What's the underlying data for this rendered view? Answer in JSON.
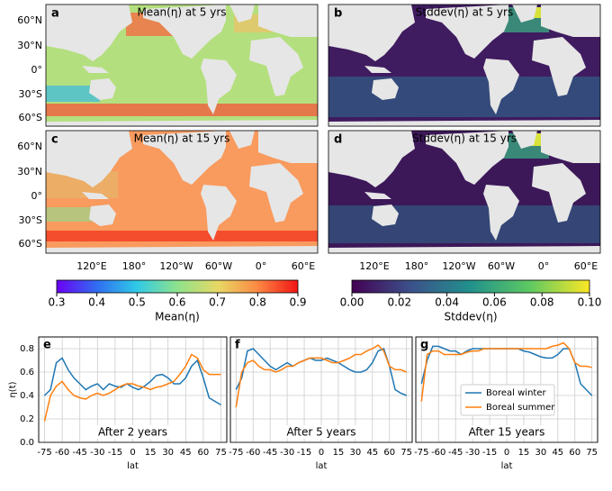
{
  "maps": [
    {
      "label": "a",
      "title": "Mean(η) at 5 yrs"
    },
    {
      "label": "b",
      "title": "Stddev(η) at 5 yrs"
    },
    {
      "label": "c",
      "title": "Mean(η) at 15 yrs"
    },
    {
      "label": "d",
      "title": "Stddev(η) at 15 yrs"
    }
  ],
  "map_axes": {
    "lat_labels": [
      "60°N",
      "30°N",
      "0°",
      "30°S",
      "60°S"
    ],
    "lon_labels": [
      "120°E",
      "180°",
      "120°W",
      "60°W",
      "0°",
      "60°E"
    ]
  },
  "colorbars": [
    {
      "label": "Mean(η)",
      "lim": [
        0.3,
        0.9
      ],
      "ticks": [
        0.3,
        0.4,
        0.5,
        0.6,
        0.7,
        0.8,
        0.9
      ]
    },
    {
      "label": "Stddev(η)",
      "lim": [
        0,
        0.1
      ],
      "ticks": [
        {
          "value": 0,
          "label": "0.00"
        },
        0.02,
        0.04,
        0.06,
        0.08,
        {
          "value": 0.1,
          "label": "0.10"
        }
      ]
    }
  ],
  "chart_data": [
    {
      "type": "line",
      "label": "e",
      "annotation": "After 2 years",
      "ylabel": "η(t)",
      "xlabel": "lat",
      "grid": true,
      "x": [
        -75,
        -70,
        -65,
        -60,
        -55,
        -50,
        -45,
        -40,
        -35,
        -30,
        -25,
        -20,
        -15,
        -10,
        -5,
        0,
        5,
        10,
        15,
        20,
        25,
        30,
        35,
        40,
        45,
        50,
        55,
        60,
        65,
        70,
        75
      ],
      "series": [
        {
          "color": "#1f77b4",
          "values": [
            0.4,
            0.45,
            0.68,
            0.72,
            0.62,
            0.55,
            0.5,
            0.45,
            0.48,
            0.5,
            0.45,
            0.5,
            0.48,
            0.47,
            0.5,
            0.47,
            0.45,
            0.48,
            0.52,
            0.57,
            0.58,
            0.55,
            0.5,
            0.5,
            0.55,
            0.65,
            0.7,
            0.55,
            0.38,
            0.35,
            0.32
          ]
        },
        {
          "color": "#ff7f0e",
          "values": [
            0.18,
            0.4,
            0.48,
            0.52,
            0.45,
            0.4,
            0.38,
            0.37,
            0.4,
            0.42,
            0.4,
            0.42,
            0.45,
            0.48,
            0.5,
            0.5,
            0.48,
            0.47,
            0.45,
            0.47,
            0.48,
            0.5,
            0.52,
            0.58,
            0.65,
            0.75,
            0.72,
            0.62,
            0.58,
            0.58,
            0.58
          ]
        }
      ],
      "xlim": [
        -80,
        80
      ],
      "ylim": [
        0,
        0.9
      ],
      "xticks": [
        -75,
        -60,
        -45,
        -30,
        -15,
        0,
        15,
        30,
        45,
        60,
        75
      ],
      "yticks": [
        {
          "value": 0,
          "label": "0.0"
        },
        0.2,
        0.4,
        0.6,
        0.8
      ]
    },
    {
      "type": "line",
      "label": "f",
      "annotation": "After 5 years",
      "xlabel": "lat",
      "grid": true,
      "x": [
        -75,
        -70,
        -65,
        -60,
        -55,
        -50,
        -45,
        -40,
        -35,
        -30,
        -25,
        -20,
        -15,
        -10,
        -5,
        0,
        5,
        10,
        15,
        20,
        25,
        30,
        35,
        40,
        45,
        50,
        55,
        60,
        65,
        70,
        75
      ],
      "series": [
        {
          "color": "#1f77b4",
          "values": [
            0.45,
            0.55,
            0.78,
            0.8,
            0.75,
            0.7,
            0.65,
            0.62,
            0.65,
            0.68,
            0.65,
            0.68,
            0.7,
            0.72,
            0.7,
            0.7,
            0.72,
            0.7,
            0.68,
            0.65,
            0.62,
            0.6,
            0.6,
            0.62,
            0.68,
            0.78,
            0.8,
            0.65,
            0.45,
            0.42,
            0.4
          ]
        },
        {
          "color": "#ff7f0e",
          "values": [
            0.3,
            0.6,
            0.68,
            0.7,
            0.65,
            0.62,
            0.62,
            0.6,
            0.62,
            0.65,
            0.65,
            0.68,
            0.7,
            0.72,
            0.72,
            0.72,
            0.7,
            0.68,
            0.68,
            0.7,
            0.72,
            0.75,
            0.75,
            0.78,
            0.8,
            0.83,
            0.78,
            0.65,
            0.62,
            0.62,
            0.6
          ]
        }
      ],
      "xlim": [
        -80,
        80
      ],
      "ylim": [
        0,
        0.9
      ],
      "xticks": [
        -75,
        -60,
        -45,
        -30,
        -15,
        0,
        15,
        30,
        45,
        60,
        75
      ]
    },
    {
      "type": "line",
      "label": "g",
      "annotation": "After 15 years",
      "xlabel": "lat",
      "grid": true,
      "legend": "lower right",
      "x": [
        -75,
        -70,
        -65,
        -60,
        -55,
        -50,
        -45,
        -40,
        -35,
        -30,
        -25,
        -20,
        -15,
        -10,
        -5,
        0,
        5,
        10,
        15,
        20,
        25,
        30,
        35,
        40,
        45,
        50,
        55,
        60,
        65,
        70,
        75
      ],
      "series": [
        {
          "name": "Boreal winter",
          "color": "#1f77b4",
          "values": [
            0.5,
            0.7,
            0.82,
            0.82,
            0.8,
            0.78,
            0.78,
            0.75,
            0.78,
            0.8,
            0.8,
            0.8,
            0.8,
            0.8,
            0.8,
            0.8,
            0.8,
            0.8,
            0.78,
            0.77,
            0.75,
            0.73,
            0.72,
            0.72,
            0.75,
            0.8,
            0.8,
            0.68,
            0.5,
            0.45,
            0.4
          ]
        },
        {
          "name": "Boreal summer",
          "color": "#ff7f0e",
          "values": [
            0.35,
            0.75,
            0.78,
            0.78,
            0.75,
            0.75,
            0.75,
            0.75,
            0.77,
            0.78,
            0.78,
            0.8,
            0.8,
            0.8,
            0.8,
            0.8,
            0.8,
            0.8,
            0.8,
            0.8,
            0.8,
            0.8,
            0.8,
            0.82,
            0.83,
            0.85,
            0.8,
            0.68,
            0.65,
            0.65,
            0.64
          ]
        }
      ],
      "xlim": [
        -80,
        80
      ],
      "ylim": [
        0,
        0.9
      ],
      "xticks": [
        -75,
        -60,
        -45,
        -30,
        -15,
        0,
        15,
        30,
        45,
        60,
        75
      ]
    }
  ]
}
